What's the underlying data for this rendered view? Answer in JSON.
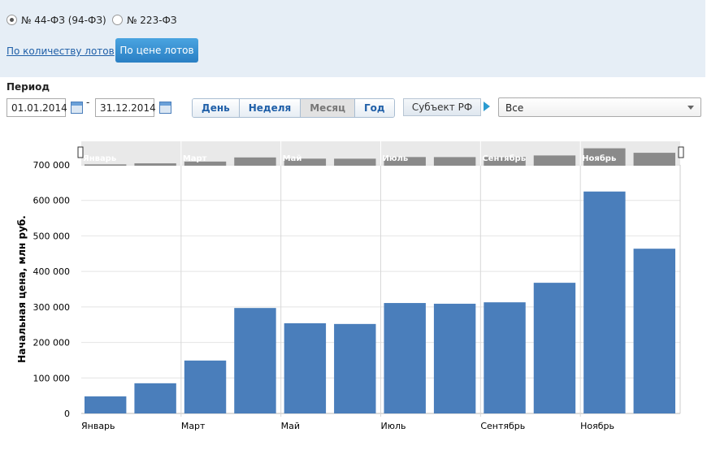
{
  "filters": {
    "law_options": [
      "№ 44-ФЗ (94-ФЗ)",
      "№ 223-ФЗ"
    ],
    "mode_link": "По количеству лотов",
    "mode_button": "По цене лотов"
  },
  "period": {
    "label": "Период",
    "from": "01.01.2014",
    "separator": "-",
    "to": "31.12.2014",
    "granularity": [
      "День",
      "Неделя",
      "Месяц",
      "Год"
    ],
    "region_button": "Субъект РФ",
    "region_value": "Все"
  },
  "chart_data": {
    "type": "bar",
    "y_label": "Начальная цена, млн руб.",
    "categories": [
      "Январь",
      null,
      "Март",
      null,
      "Май",
      null,
      "Июль",
      null,
      "Сентябрь",
      null,
      "Ноябрь",
      null
    ],
    "values": [
      48000,
      85000,
      149000,
      297000,
      254000,
      252000,
      311000,
      309000,
      313000,
      368000,
      625000,
      464000
    ],
    "color": "#4a7ebb",
    "ylim": [
      0,
      700000
    ],
    "yticks": [
      0,
      {
        "value": 100000,
        "label": "100 000"
      },
      {
        "value": 200000,
        "label": "200 000"
      },
      {
        "value": 300000,
        "label": "300 000"
      },
      {
        "value": 400000,
        "label": "400 000"
      },
      {
        "value": 500000,
        "label": "500 000"
      },
      {
        "value": 600000,
        "label": "600 000"
      },
      {
        "value": 700000,
        "label": "700 000"
      }
    ],
    "grid": true
  }
}
